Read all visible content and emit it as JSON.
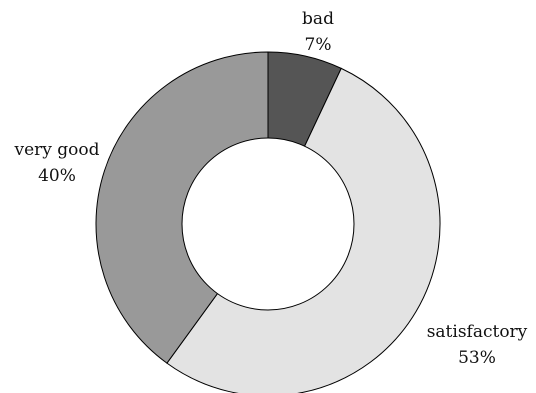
{
  "chart_data": {
    "type": "pie",
    "donut": true,
    "slices": [
      {
        "label": "bad",
        "value": 7,
        "value_label": "7%",
        "color": "#555555"
      },
      {
        "label": "satisfactory",
        "value": 53,
        "value_label": "53%",
        "color": "#e3e3e3"
      },
      {
        "label": "very good",
        "value": 40,
        "value_label": "40%",
        "color": "#999999"
      }
    ],
    "start_angle": "12 o'clock, clockwise",
    "legend": "none"
  }
}
